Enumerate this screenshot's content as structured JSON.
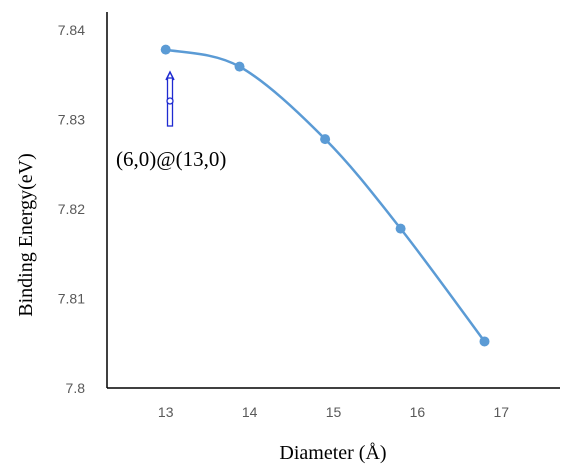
{
  "chart_data": {
    "type": "line",
    "title": "",
    "xlabel": "Diameter (Å)",
    "ylabel": "Binding Energy(eV)",
    "xlim": [
      12.3,
      17.7
    ],
    "ylim": [
      7.8,
      7.842
    ],
    "x_ticks": [
      "13",
      "14",
      "15",
      "16",
      "17"
    ],
    "y_ticks": [
      "7.84",
      "7.83",
      "7.82",
      "7.81",
      "7.8"
    ],
    "grid": false,
    "legend": "none",
    "series": [
      {
        "color": "#5b9bd5",
        "smooth": true,
        "points": [
          {
            "x": 13.0,
            "y": 7.8378
          },
          {
            "x": 13.88,
            "y": 7.8359
          },
          {
            "x": 14.9,
            "y": 7.8278
          },
          {
            "x": 15.8,
            "y": 7.8178
          },
          {
            "x": 16.8,
            "y": 7.8052
          }
        ]
      }
    ],
    "annotations": [
      {
        "text": "(6,0)@(13,0)",
        "color": "#1f2bd1"
      }
    ]
  }
}
